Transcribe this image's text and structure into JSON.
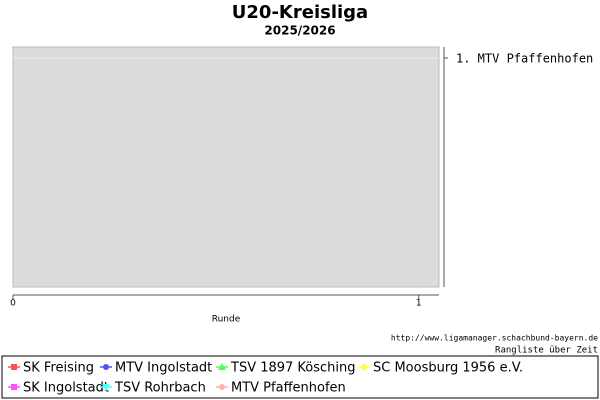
{
  "chart_data": {
    "type": "line",
    "title": "U20-Kreisliga",
    "subtitle": "2025/2026",
    "x_label": "Runde",
    "xlim": [
      0,
      1.05
    ],
    "xticks": [
      0,
      1
    ],
    "y2lim": [
      11.4,
      0.5
    ],
    "y2ticks": [
      {
        "value": 1,
        "label": "1. MTV Pfaffenhofen"
      }
    ],
    "source": "http://www.ligamanager.schachbund-bayern.de",
    "caption": "Rangliste über Zeit",
    "grid": true,
    "series": [
      {
        "name": "SK Freising",
        "color": "#ff5050",
        "marker": "square"
      },
      {
        "name": "MTV Ingolstadt",
        "color": "#5050ff",
        "marker": "circle"
      },
      {
        "name": "TSV 1897 Kösching",
        "color": "#50ff50",
        "marker": "triangle"
      },
      {
        "name": "SC Moosburg 1956 e.V.",
        "color": "#ffff50",
        "marker": "diamond"
      },
      {
        "name": "SK Ingolstadt",
        "color": "#ff50ff",
        "marker": "square"
      },
      {
        "name": "TSV Rohrbach",
        "color": "#50ffff",
        "marker": "triangle-down"
      },
      {
        "name": "MTV Pfaffenhofen",
        "color": "#ffb0b0",
        "marker": "circle"
      }
    ]
  }
}
